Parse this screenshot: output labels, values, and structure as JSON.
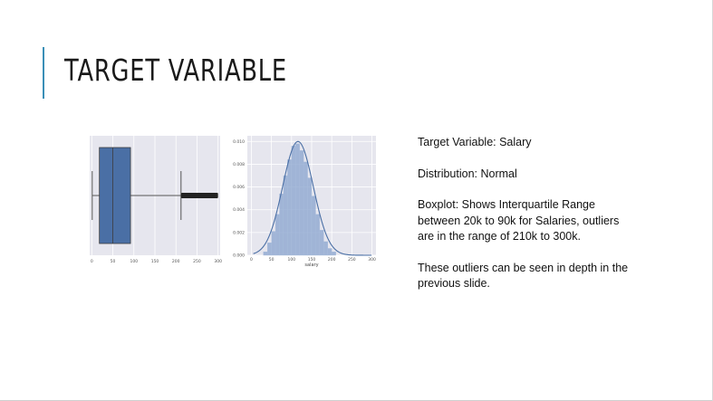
{
  "slide": {
    "title": "TARGET VARIABLE",
    "accent_color": "#3a8fb7",
    "paragraphs": [
      "Target Variable: Salary",
      "Distribution: Normal",
      "Boxplot: Shows Interquartile Range between 20k to 90k for Salaries, outliers are in the range of 210k to 300k.",
      "These outliers can be seen in depth in the previous slide."
    ]
  },
  "chart_data": [
    {
      "type": "boxplot",
      "title": "",
      "xlabel": "",
      "xticks": [
        "0",
        "50",
        "100",
        "150",
        "200",
        "250",
        "300"
      ],
      "xlim": [
        -5,
        305
      ],
      "box": {
        "whisker_low": 1,
        "q1": 18,
        "median": 50,
        "q3": 92,
        "whisker_high": 212
      },
      "outliers_range": [
        212,
        300
      ],
      "box_color": "#4a6fa5",
      "background": "#e6e6ee"
    },
    {
      "type": "histogram",
      "title": "",
      "xlabel": "salary",
      "xticks": [
        "0",
        "50",
        "100",
        "150",
        "200",
        "250",
        "300"
      ],
      "yticks": [
        "0.000",
        "0.002",
        "0.004",
        "0.006",
        "0.008",
        "0.010"
      ],
      "xlim": [
        -10,
        310
      ],
      "ylim": [
        0,
        0.0105
      ],
      "bins": [
        {
          "x0": 30,
          "x1": 40,
          "density": 0.0003
        },
        {
          "x0": 40,
          "x1": 50,
          "density": 0.0011
        },
        {
          "x0": 50,
          "x1": 60,
          "density": 0.0021
        },
        {
          "x0": 60,
          "x1": 70,
          "density": 0.0036
        },
        {
          "x0": 70,
          "x1": 80,
          "density": 0.0054
        },
        {
          "x0": 80,
          "x1": 90,
          "density": 0.007
        },
        {
          "x0": 90,
          "x1": 100,
          "density": 0.0084
        },
        {
          "x0": 100,
          "x1": 110,
          "density": 0.0096
        },
        {
          "x0": 110,
          "x1": 120,
          "density": 0.0098
        },
        {
          "x0": 120,
          "x1": 130,
          "density": 0.0092
        },
        {
          "x0": 130,
          "x1": 140,
          "density": 0.0082
        },
        {
          "x0": 140,
          "x1": 150,
          "density": 0.0068
        },
        {
          "x0": 150,
          "x1": 160,
          "density": 0.0052
        },
        {
          "x0": 160,
          "x1": 170,
          "density": 0.0036
        },
        {
          "x0": 170,
          "x1": 180,
          "density": 0.0022
        },
        {
          "x0": 180,
          "x1": 190,
          "density": 0.0012
        },
        {
          "x0": 190,
          "x1": 200,
          "density": 0.0006
        },
        {
          "x0": 200,
          "x1": 210,
          "density": 0.0003
        }
      ],
      "kde": {
        "mean": 116,
        "sd": 38
      },
      "bar_color": "#8fa8d0",
      "line_color": "#4a6fa5",
      "background": "#e6e6ee"
    }
  ]
}
